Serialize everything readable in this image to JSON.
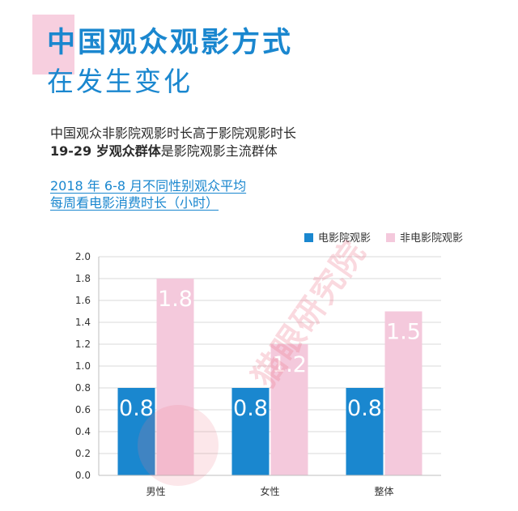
{
  "header": {
    "title_line1": "中国观众观影方式",
    "title_line2": "在发生变化"
  },
  "description": {
    "line1": "中国观众非影院观影时长高于影院观影时长",
    "line2_bold": "19-29 岁观众群体",
    "line2_rest": "是影院观影主流群体"
  },
  "subtitle": {
    "line1": "2018 年 6-8 月不同性别观众平均",
    "line2": "每周看电影消费时长（小时）"
  },
  "watermark": {
    "text": "猫眼研究院"
  },
  "colors": {
    "accent": "#1a87cf",
    "pink_block": "#f7cfdf",
    "series_cinema": "#1a87cf",
    "series_non_cinema": "#f4c9dc"
  },
  "chart_data": {
    "type": "bar",
    "title": "2018 年 6-8 月不同性别观众平均每周看电影消费时长（小时）",
    "categories": [
      "男性",
      "女性",
      "整体"
    ],
    "series": [
      {
        "name": "电影院观影",
        "values": [
          0.8,
          0.8,
          0.8
        ],
        "color": "#1a87cf"
      },
      {
        "name": "非电影院观影",
        "values": [
          1.8,
          1.2,
          1.5
        ],
        "color": "#f4c9dc"
      }
    ],
    "value_labels": {
      "电影院观影": [
        "0.8",
        "0.8",
        "0.8"
      ],
      "非电影院观影": [
        "1.8",
        "1.2",
        "1.5"
      ]
    },
    "y_ticks": [
      "0.0",
      "0.2",
      "0.4",
      "0.6",
      "0.8",
      "1.0",
      "1.2",
      "1.4",
      "1.6",
      "1.8",
      "2.0"
    ],
    "ylim": [
      0,
      2.0
    ],
    "grid": true,
    "legend_position": "top-right",
    "xlabel": "",
    "ylabel": ""
  }
}
